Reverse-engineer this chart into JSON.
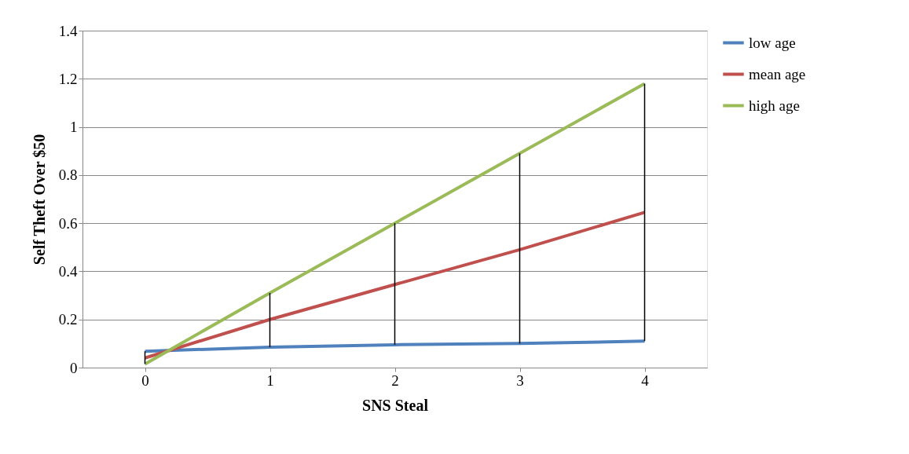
{
  "chart_data": {
    "type": "line",
    "xlabel": "SNS Steal",
    "ylabel": "Self Theft Over $50",
    "categories": [
      "0",
      "1",
      "2",
      "3",
      "4"
    ],
    "series": [
      {
        "name": "low age",
        "color": "#4f81bd",
        "values": [
          0.068,
          0.085,
          0.095,
          0.1,
          0.11
        ],
        "errors": [
          [
            0.015,
            0.068
          ],
          [
            0.085,
            0.31
          ],
          [
            0.095,
            0.6
          ],
          [
            0.1,
            0.89
          ],
          [
            0.11,
            1.18
          ]
        ]
      },
      {
        "name": "mean age",
        "color": "#c0504d",
        "values": [
          0.04,
          0.2,
          0.345,
          0.49,
          0.645
        ]
      },
      {
        "name": "high age",
        "color": "#9bbb59",
        "values": [
          0.015,
          0.31,
          0.6,
          0.89,
          1.18
        ]
      }
    ],
    "ylim": [
      0,
      1.4
    ],
    "yticks": [
      0,
      0.2,
      0.4,
      0.6,
      0.8,
      1,
      1.2,
      1.4
    ],
    "grid": "y",
    "legend": "right",
    "marker": "none",
    "line_style": "solid"
  }
}
